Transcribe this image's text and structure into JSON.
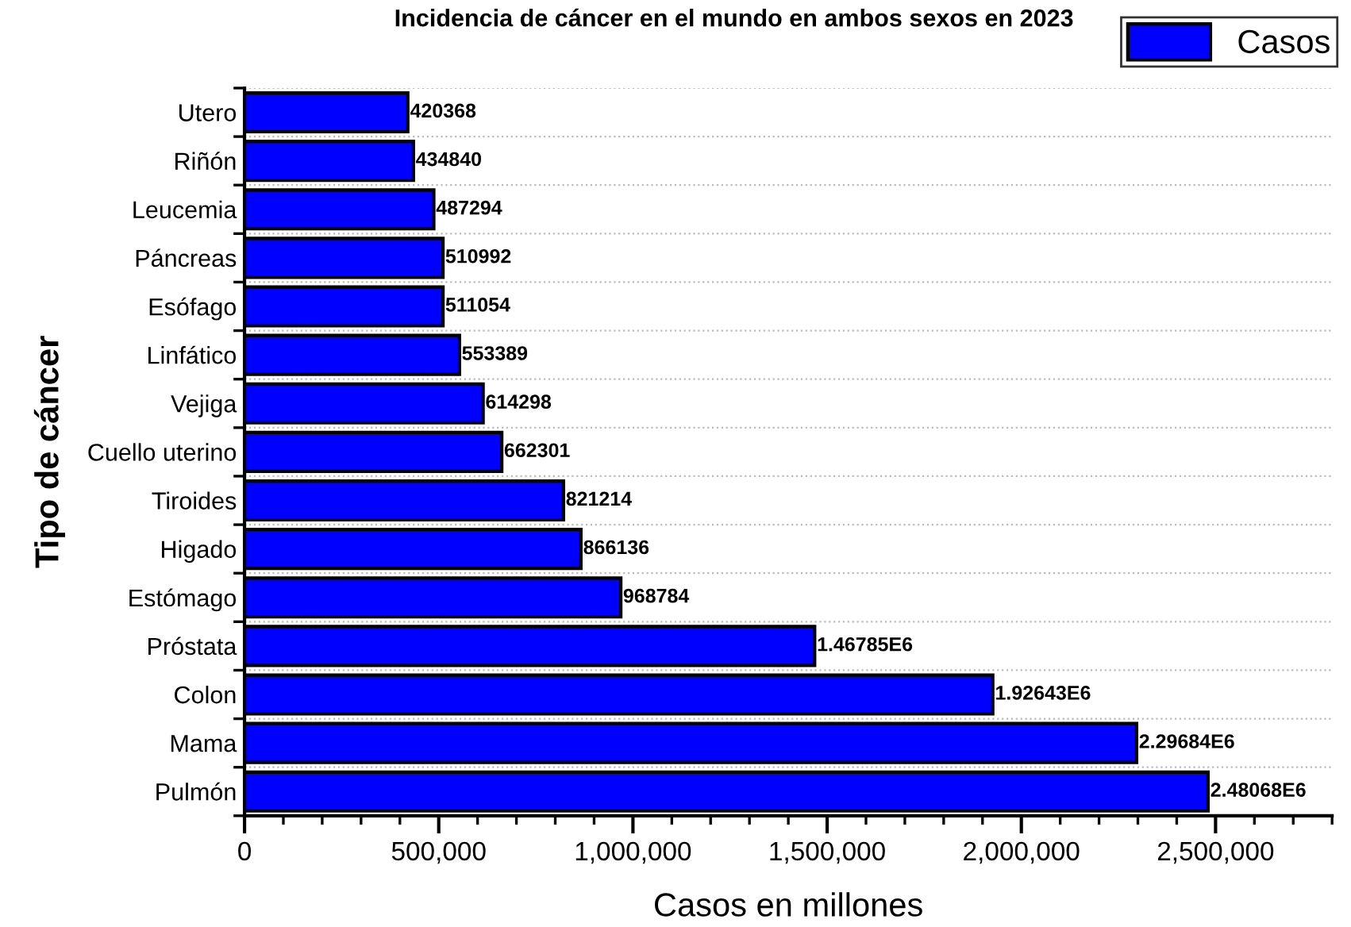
{
  "chart_data": {
    "type": "bar",
    "orientation": "horizontal",
    "title": "Incidencia de cáncer en el mundo en ambos sexos en 2023",
    "xlabel": "Casos en millones",
    "ylabel": "Tipo de cáncer",
    "categories": [
      "Utero",
      "Riñón",
      "Leucemia",
      "Páncreas",
      "Esófago",
      "Linfático",
      "Vejiga",
      "Cuello uterino",
      "Tiroides",
      "Higado",
      "Estómago",
      "Próstata",
      "Colon",
      "Mama",
      "Pulmón"
    ],
    "series": [
      {
        "name": "Casos",
        "color": "#0000ff",
        "values": [
          420368,
          434840,
          487294,
          510992,
          511054,
          553389,
          614298,
          662301,
          821214,
          866136,
          968784,
          1467850,
          1926430,
          2296840,
          2480680
        ],
        "value_labels": [
          "420368",
          "434840",
          "487294",
          "510992",
          "511054",
          "553389",
          "614298",
          "662301",
          "821214",
          "866136",
          "968784",
          "1.46785E6",
          "1.92643E6",
          "2.29684E6",
          "2.48068E6"
        ]
      }
    ],
    "xlim": [
      0,
      2800000
    ],
    "xticks": [
      {
        "value": 0,
        "label": "0"
      },
      {
        "value": 500000,
        "label": "500,000"
      },
      {
        "value": 1000000,
        "label": "1,000,000"
      },
      {
        "value": 1500000,
        "label": "1,500,000"
      },
      {
        "value": 2000000,
        "label": "2,000,000"
      },
      {
        "value": 2500000,
        "label": "2,500,000"
      }
    ],
    "grid": "y",
    "legend": "top right"
  }
}
